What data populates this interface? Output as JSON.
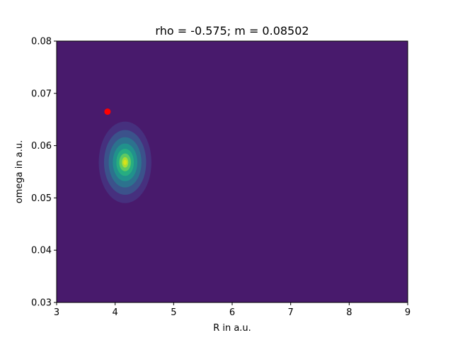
{
  "chart_data": {
    "type": "contour",
    "title": "rho = -0.575;  m = 0.08502",
    "xlabel": "R in a.u.",
    "ylabel": "omega in a.u.",
    "xlim": [
      3,
      9
    ],
    "ylim": [
      0.03,
      0.08
    ],
    "x_ticks": [
      3,
      4,
      5,
      6,
      7,
      8,
      9
    ],
    "x_tick_labels": [
      "3",
      "4",
      "5",
      "6",
      "7",
      "8",
      "9"
    ],
    "y_ticks": [
      0.03,
      0.04,
      0.05,
      0.06,
      0.07,
      0.08
    ],
    "y_tick_labels": [
      "0.03",
      "0.04",
      "0.05",
      "0.06",
      "0.07",
      "0.08"
    ],
    "grid": false,
    "colormap": "viridis",
    "background_color": "#481a6c",
    "distribution_peak": {
      "x": 4.17,
      "y": 0.0568
    },
    "contour_levels": [
      {
        "level": 1,
        "rx": 0.45,
        "ry": 0.0078,
        "color": "#46307e"
      },
      {
        "level": 2,
        "rx": 0.36,
        "ry": 0.0062,
        "color": "#3b528b"
      },
      {
        "level": 3,
        "rx": 0.28,
        "ry": 0.0048,
        "color": "#2c728e"
      },
      {
        "level": 4,
        "rx": 0.21,
        "ry": 0.0036,
        "color": "#21918c"
      },
      {
        "level": 5,
        "rx": 0.15,
        "ry": 0.0026,
        "color": "#27ad81"
      },
      {
        "level": 6,
        "rx": 0.1,
        "ry": 0.0017,
        "color": "#5ec962"
      },
      {
        "level": 7,
        "rx": 0.055,
        "ry": 0.001,
        "color": "#aadc32"
      },
      {
        "level": 8,
        "rx": 0.03,
        "ry": 0.0005,
        "color": "#d8e219"
      }
    ],
    "marker": {
      "x": 3.87,
      "y": 0.0665,
      "color": "#ff0000"
    }
  }
}
